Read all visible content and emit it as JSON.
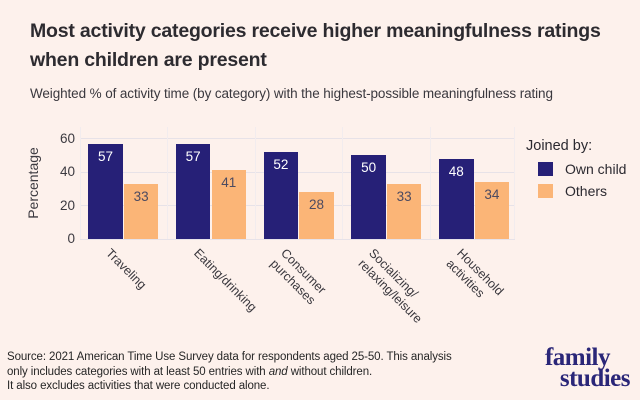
{
  "page": {
    "background": "#fdf1ec"
  },
  "header": {
    "title_line1": "Most activity categories receive higher meaningfulness ratings",
    "title_line2": "when children are present",
    "subtitle": "Weighted % of activity time (by category) with the highest-possible meaningfulness rating"
  },
  "chart_data": {
    "type": "bar",
    "categories": [
      "Traveling",
      "Eating/drinking",
      "Consumer\npurchases",
      "Socializing/\nrelaxing/leisure",
      "Household\nactivities"
    ],
    "series": [
      {
        "name": "Own child",
        "color": "#262077",
        "label_color": "#ffffff",
        "values": [
          57,
          57,
          52,
          50,
          48
        ]
      },
      {
        "name": "Others",
        "color": "#fbb577",
        "label_color": "#4c4a60",
        "values": [
          33,
          41,
          28,
          33,
          34
        ]
      }
    ],
    "ylabel": "Percentage",
    "yticks": [
      0,
      20,
      40,
      60
    ],
    "ylim": [
      0,
      67
    ],
    "legend_title": "Joined by:",
    "legend_position": "right",
    "grid": "horizontal-major",
    "bar_value_labels": "inside-top"
  },
  "footer": {
    "source_line1": "Source: 2021 American Time Use Survey data for respondents aged 25-50. This analysis",
    "source_line2_pre": "only includes categories with at least 50 entries with ",
    "source_line2_italic": "and",
    "source_line2_post": " without children.",
    "source_line3": "It also excludes activities that were conducted alone.",
    "logo_line1": "family",
    "logo_line2": "studies"
  }
}
